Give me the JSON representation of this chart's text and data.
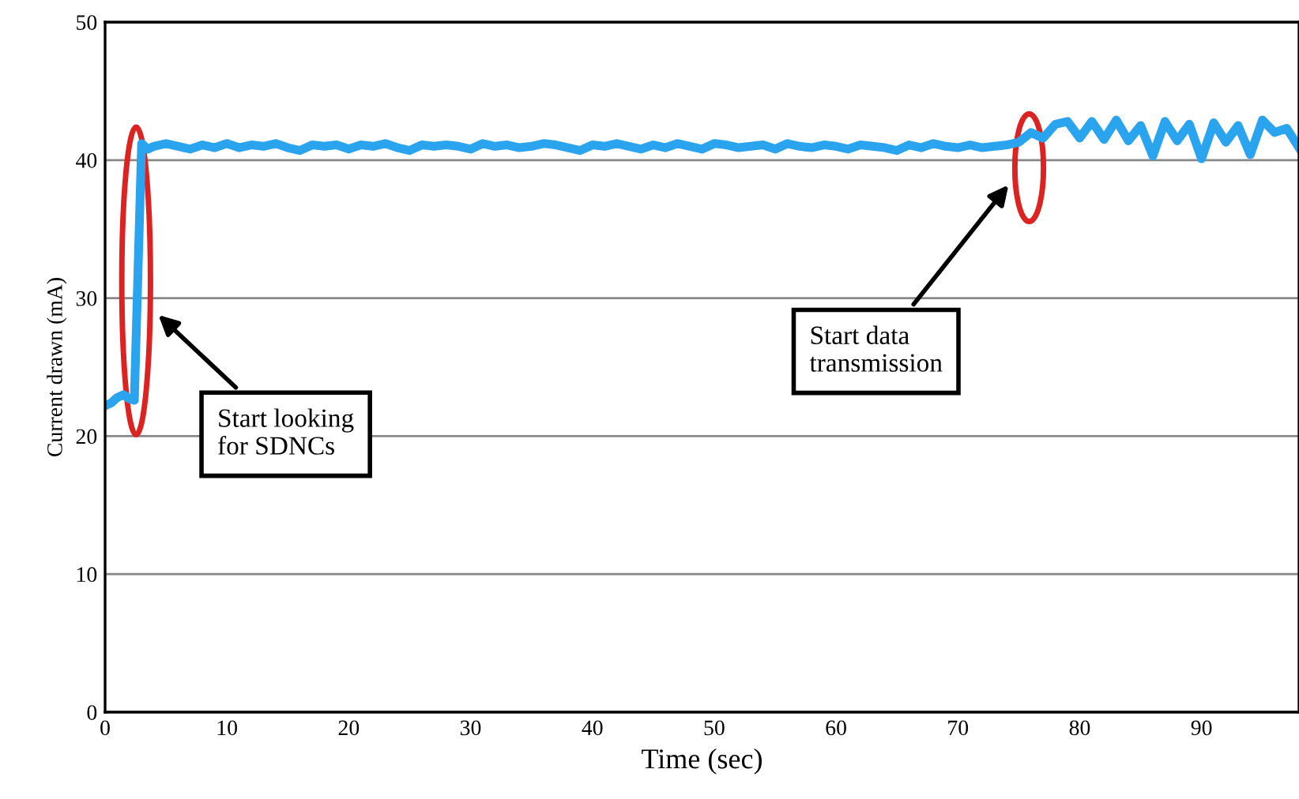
{
  "chart_data": {
    "type": "line",
    "xlabel": "Time (sec)",
    "ylabel": "Current drawn (mA)",
    "xlim": [
      0,
      98
    ],
    "xticks": [
      0,
      10,
      20,
      30,
      40,
      50,
      60,
      70,
      80,
      90
    ],
    "ylim": [
      0,
      50
    ],
    "yticks": [
      0,
      10,
      20,
      30,
      40,
      50
    ],
    "grid": "y",
    "marker": "none",
    "line_style": "solid",
    "series": [
      {
        "color": "#2aa4ee",
        "x": [
          0,
          0.5,
          1,
          1.5,
          2,
          2.4,
          3,
          3.5,
          4,
          5,
          6,
          7,
          8,
          9,
          10,
          11,
          12,
          13,
          14,
          15,
          16,
          17,
          18,
          19,
          20,
          21,
          22,
          23,
          24,
          25,
          26,
          27,
          28,
          29,
          30,
          31,
          32,
          33,
          34,
          35,
          36,
          37,
          38,
          39,
          40,
          41,
          42,
          43,
          44,
          45,
          46,
          47,
          48,
          49,
          50,
          51,
          52,
          53,
          54,
          55,
          56,
          57,
          58,
          59,
          60,
          61,
          62,
          63,
          64,
          65,
          66,
          67,
          68,
          69,
          70,
          71,
          72,
          73,
          74,
          75,
          76,
          77,
          78,
          79,
          80,
          81,
          82,
          83,
          84,
          85,
          86,
          87,
          88,
          89,
          90,
          91,
          92,
          93,
          94,
          95,
          96,
          97,
          98
        ],
        "values": [
          22.2,
          22.4,
          22.8,
          23.0,
          22.7,
          22.6,
          41.2,
          40.8,
          41.0,
          41.2,
          41.0,
          40.8,
          41.1,
          40.9,
          41.2,
          40.9,
          41.1,
          41.0,
          41.2,
          40.9,
          40.7,
          41.1,
          41.0,
          41.1,
          40.8,
          41.1,
          41.0,
          41.2,
          40.9,
          40.7,
          41.1,
          41.0,
          41.1,
          41.0,
          40.8,
          41.2,
          41.0,
          41.1,
          40.9,
          41.0,
          41.2,
          41.1,
          40.9,
          40.7,
          41.1,
          41.0,
          41.2,
          41.0,
          40.8,
          41.1,
          40.9,
          41.2,
          41.0,
          40.8,
          41.2,
          41.1,
          40.9,
          41.0,
          41.1,
          40.8,
          41.2,
          41.0,
          40.9,
          41.1,
          41.0,
          40.8,
          41.1,
          41.0,
          40.9,
          40.7,
          41.1,
          40.9,
          41.2,
          41.0,
          40.9,
          41.1,
          40.9,
          41.0,
          41.1,
          41.3,
          42.0,
          41.6,
          42.6,
          42.8,
          41.6,
          42.8,
          41.5,
          42.9,
          41.4,
          42.5,
          40.3,
          42.8,
          41.4,
          42.6,
          40.1,
          42.7,
          41.3,
          42.5,
          40.4,
          42.9,
          42.0,
          42.3,
          40.9
        ]
      }
    ],
    "annotations": [
      "Start looking\nfor SDNCs",
      "Start data\ntransmission"
    ]
  }
}
